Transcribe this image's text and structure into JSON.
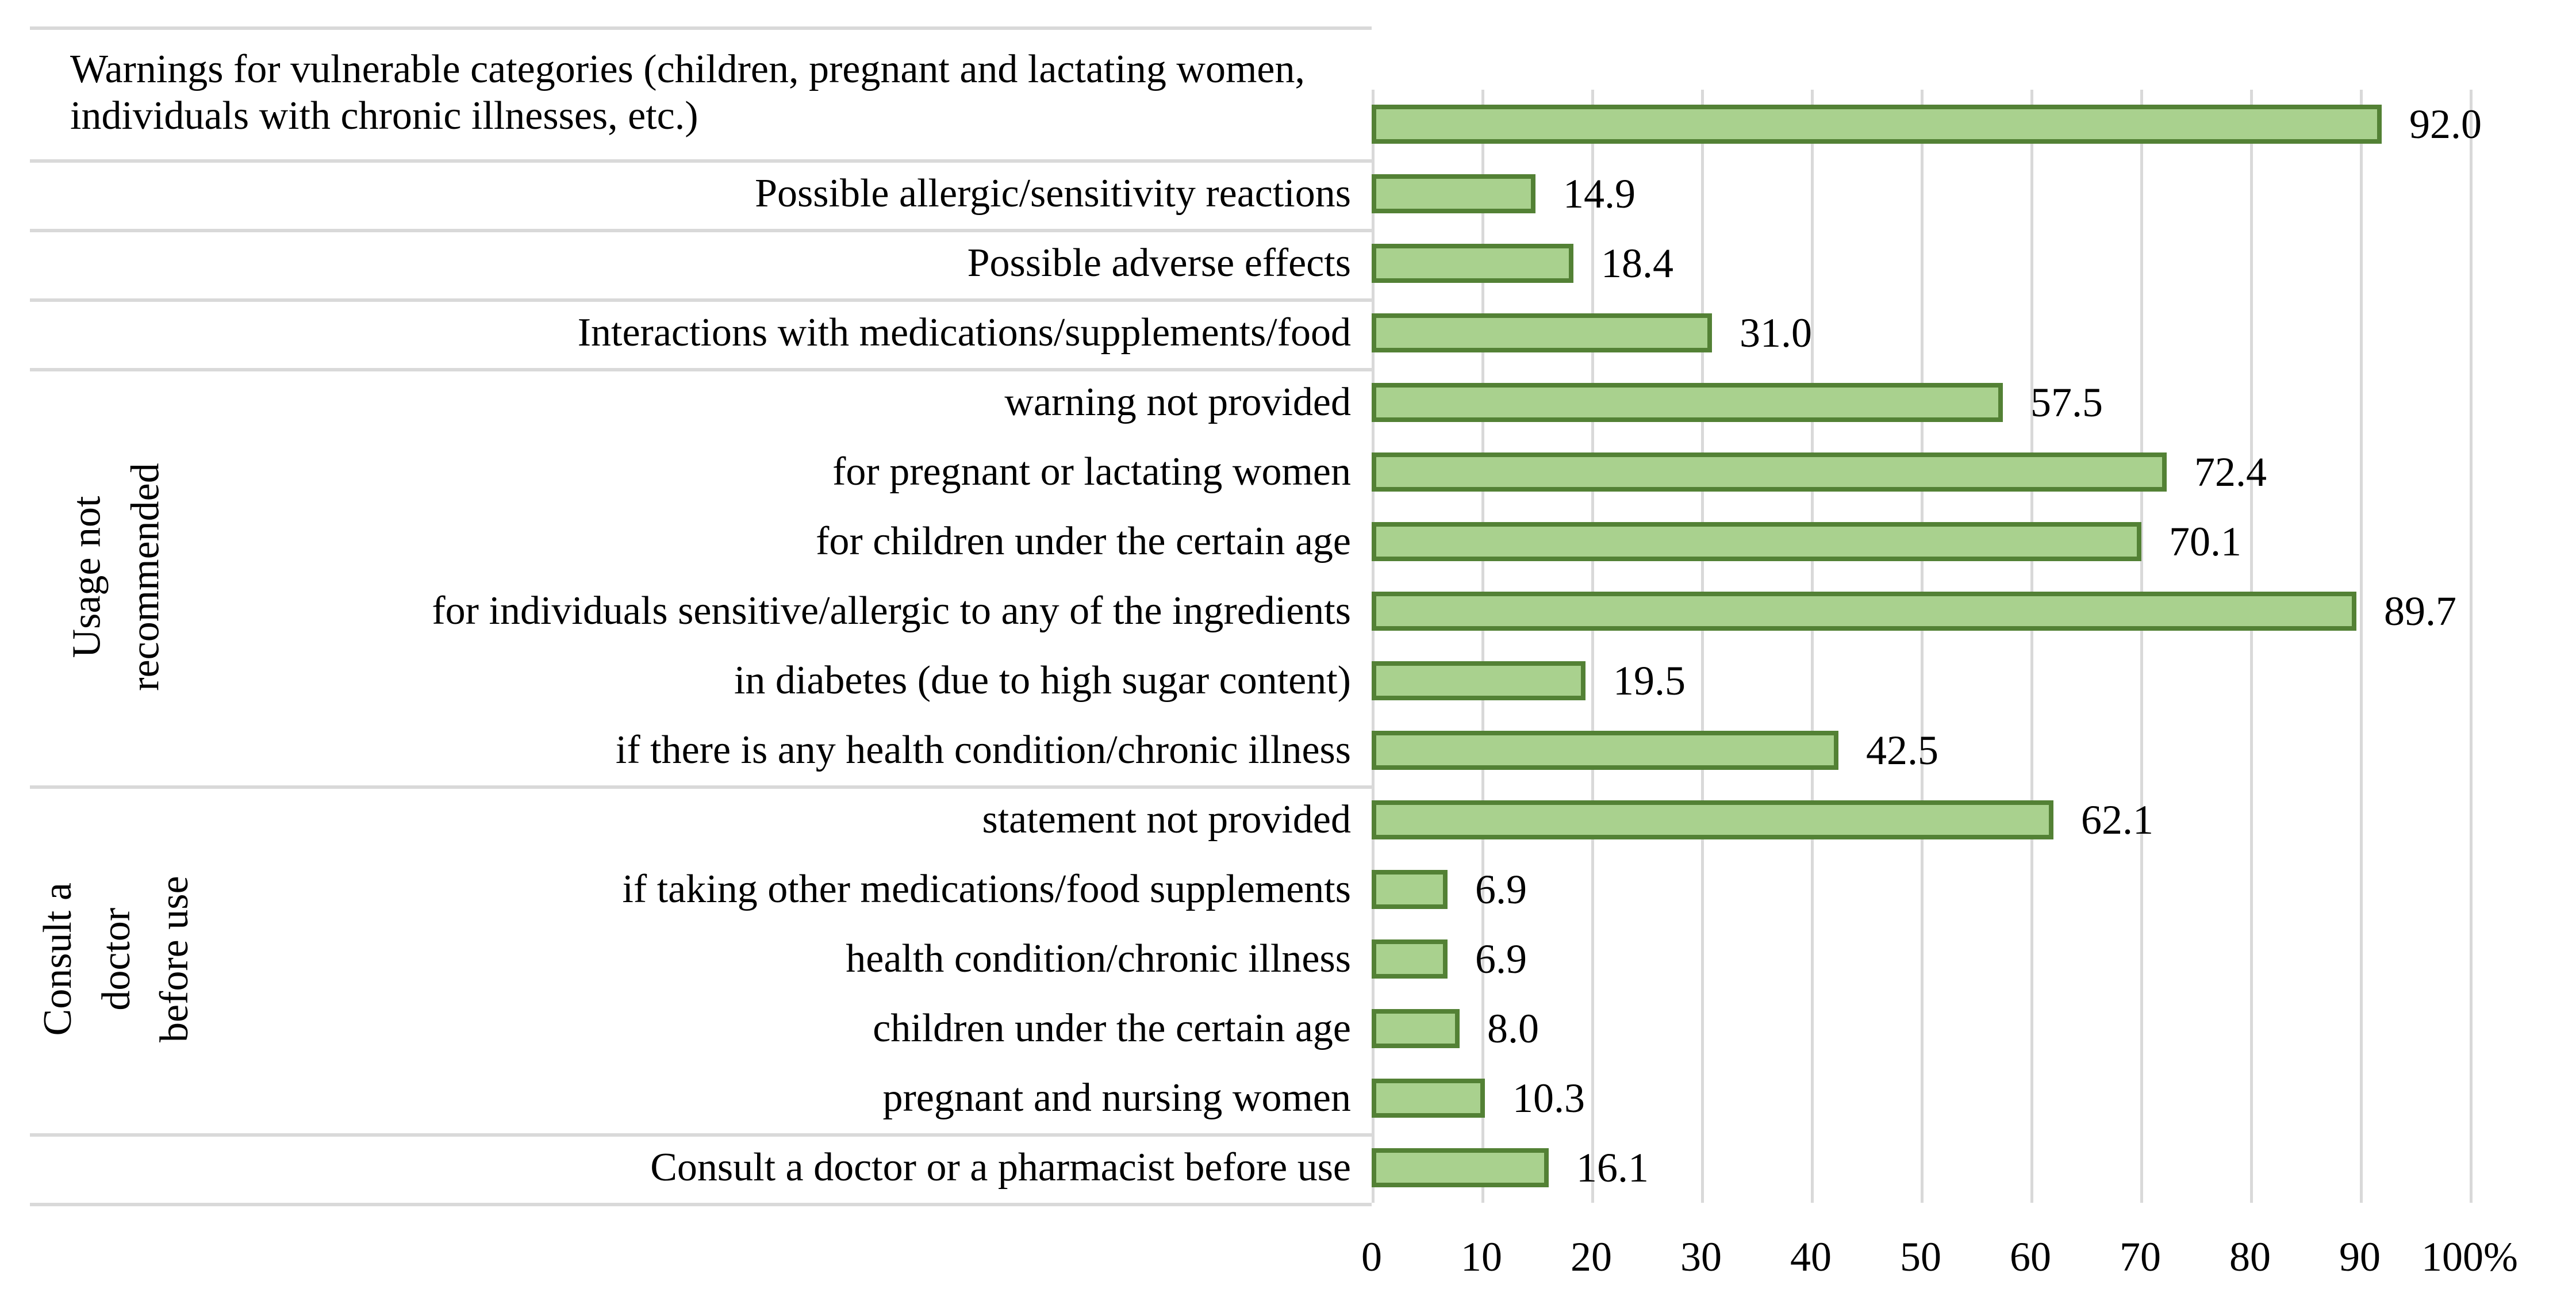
{
  "chart_data": {
    "type": "bar",
    "orientation": "horizontal",
    "title": "",
    "xlabel": "",
    "ylabel": "",
    "value_unit": "%",
    "xlim": [
      0,
      100
    ],
    "grid": true,
    "legend": false,
    "x_ticks": [
      "0",
      "10",
      "20",
      "30",
      "40",
      "50",
      "60",
      "70",
      "80",
      "90",
      "100%"
    ],
    "rows": [
      {
        "label": "Warnings for vulnerable categories (children, pregnant and lactating women, individuals with chronic illnesses, etc.)",
        "value": 92.0,
        "value_label": "92.0"
      },
      {
        "label": "Possible allergic/sensitivity reactions",
        "value": 14.9,
        "value_label": "14.9"
      },
      {
        "label": "Possible adverse effects",
        "value": 18.4,
        "value_label": "18.4"
      },
      {
        "label": "Interactions with medications/supplements/food",
        "value": 31.0,
        "value_label": "31.0"
      },
      {
        "label": "warning not provided",
        "value": 57.5,
        "value_label": "57.5"
      },
      {
        "label": "for pregnant or lactating women",
        "value": 72.4,
        "value_label": "72.4"
      },
      {
        "label": "for children under the certain age",
        "value": 70.1,
        "value_label": "70.1"
      },
      {
        "label": "for individuals sensitive/allergic to any of the ingredients",
        "value": 89.7,
        "value_label": "89.7"
      },
      {
        "label": "in diabetes (due to high sugar content)",
        "value": 19.5,
        "value_label": "19.5"
      },
      {
        "label": "if there is any health condition/chronic illness",
        "value": 42.5,
        "value_label": "42.5"
      },
      {
        "label": "statement not provided",
        "value": 62.1,
        "value_label": "62.1"
      },
      {
        "label": "if taking other medications/food supplements",
        "value": 6.9,
        "value_label": "6.9"
      },
      {
        "label": "health condition/chronic illness",
        "value": 6.9,
        "value_label": "6.9"
      },
      {
        "label": "children under the certain age",
        "value": 8.0,
        "value_label": "8.0"
      },
      {
        "label": "pregnant and nursing women",
        "value": 10.3,
        "value_label": "10.3"
      },
      {
        "label": "Consult a doctor or a pharmacist before use",
        "value": 16.1,
        "value_label": "16.1"
      }
    ],
    "groups": [
      {
        "label": "Usage not recommended",
        "first_row": 4,
        "last_row": 9
      },
      {
        "label": "Consult a doctor before use",
        "first_row": 10,
        "last_row": 14
      }
    ],
    "colors": {
      "bar_fill": "#a9d18e",
      "bar_border": "#538135",
      "gridline": "#d9d9d9",
      "text": "#000000"
    }
  }
}
